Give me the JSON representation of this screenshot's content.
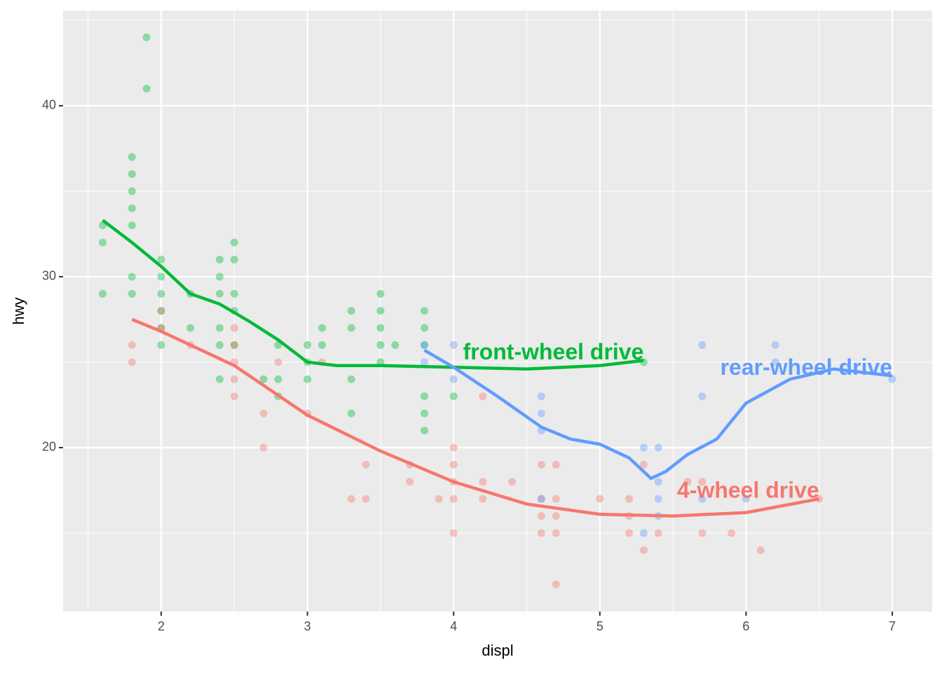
{
  "chart_data": {
    "type": "scatter",
    "x_label": "displ",
    "y_label": "hwy",
    "xlim": [
      1.329,
      7.273
    ],
    "ylim": [
      10.41,
      45.57
    ],
    "xticks": [
      2,
      3,
      4,
      5,
      6,
      7
    ],
    "yticks": [
      20,
      30,
      40
    ],
    "x_minor_grid": [
      1.5,
      2.5,
      3.5,
      4.5,
      5.5,
      6.5
    ],
    "y_minor_grid": [
      15,
      25,
      35,
      45
    ],
    "grid": true,
    "point_opacity": 0.4,
    "series": [
      {
        "name": "front-wheel drive",
        "color": "#00ba38",
        "x": [
          1.6,
          1.6,
          1.6,
          1.8,
          1.8,
          1.8,
          1.8,
          1.8,
          1.8,
          1.8,
          1.9,
          1.9,
          2.0,
          2.0,
          2.0,
          2.0,
          2.0,
          2.0,
          2.2,
          2.2,
          2.4,
          2.4,
          2.4,
          2.4,
          2.4,
          2.4,
          2.5,
          2.5,
          2.5,
          2.5,
          2.5,
          2.7,
          2.8,
          2.8,
          2.8,
          3.0,
          3.0,
          3.0,
          3.1,
          3.1,
          3.3,
          3.3,
          3.3,
          3.3,
          3.5,
          3.5,
          3.5,
          3.5,
          3.5,
          3.6,
          3.8,
          3.8,
          3.8,
          3.8,
          3.8,
          3.8,
          4.0,
          5.3
        ],
        "values": [
          33,
          32,
          29,
          37,
          36,
          35,
          34,
          33,
          30,
          29,
          44,
          41,
          31,
          30,
          29,
          28,
          27,
          26,
          29,
          27,
          31,
          30,
          29,
          27,
          26,
          24,
          32,
          31,
          29,
          28,
          26,
          24,
          26,
          24,
          23,
          26,
          25,
          24,
          27,
          26,
          28,
          27,
          24,
          22,
          29,
          28,
          27,
          26,
          25,
          26,
          28,
          27,
          26,
          23,
          22,
          21,
          23,
          25
        ],
        "smooth_x": [
          1.6,
          1.8,
          2.0,
          2.2,
          2.4,
          2.6,
          2.8,
          3.0,
          3.2,
          3.5,
          4.0,
          4.5,
          5.0,
          5.3
        ],
        "smooth_values": [
          33.3,
          32.0,
          30.6,
          29.0,
          28.4,
          27.4,
          26.3,
          25.0,
          24.8,
          24.8,
          24.7,
          24.6,
          24.8,
          25.1
        ]
      },
      {
        "name": "4-wheel drive",
        "color": "#f8766d",
        "x": [
          1.8,
          1.8,
          2.0,
          2.0,
          2.2,
          2.5,
          2.5,
          2.5,
          2.5,
          2.5,
          2.7,
          2.7,
          2.8,
          3.0,
          3.1,
          3.3,
          3.4,
          3.4,
          3.7,
          3.7,
          3.9,
          4.0,
          4.0,
          4.0,
          4.0,
          4.0,
          4.2,
          4.2,
          4.2,
          4.4,
          4.6,
          4.6,
          4.6,
          4.6,
          4.7,
          4.7,
          4.7,
          4.7,
          4.7,
          5.0,
          5.2,
          5.2,
          5.2,
          5.3,
          5.3,
          5.4,
          5.6,
          5.7,
          5.7,
          5.9,
          6.1,
          6.5
        ],
        "values": [
          26,
          25,
          28,
          27,
          26,
          27,
          26,
          25,
          24,
          23,
          22,
          20,
          25,
          22,
          25,
          17,
          19,
          17,
          19,
          18,
          17,
          20,
          19,
          18,
          17,
          15,
          23,
          18,
          17,
          18,
          19,
          17,
          16,
          15,
          19,
          17,
          16,
          15,
          12,
          17,
          17,
          16,
          15,
          19,
          14,
          15,
          18,
          18,
          15,
          15,
          14,
          17
        ],
        "smooth_x": [
          1.8,
          2.0,
          2.5,
          3.0,
          3.5,
          4.0,
          4.5,
          5.0,
          5.5,
          6.0,
          6.5
        ],
        "smooth_values": [
          27.5,
          26.8,
          24.8,
          21.9,
          19.8,
          18.0,
          16.7,
          16.1,
          16.0,
          16.2,
          17.0
        ]
      },
      {
        "name": "rear-wheel drive",
        "color": "#619cff",
        "x": [
          3.8,
          3.8,
          4.0,
          4.0,
          4.6,
          4.6,
          4.6,
          4.6,
          5.3,
          5.3,
          5.4,
          5.4,
          5.4,
          5.4,
          5.7,
          5.7,
          5.7,
          6.0,
          6.2,
          6.2,
          7.0
        ],
        "values": [
          26,
          25,
          26,
          24,
          23,
          22,
          21,
          17,
          20,
          15,
          20,
          18,
          17,
          16,
          26,
          23,
          17,
          17,
          26,
          25,
          24
        ],
        "smooth_x": [
          3.8,
          4.0,
          4.3,
          4.6,
          4.8,
          5.0,
          5.2,
          5.35,
          5.45,
          5.6,
          5.8,
          6.0,
          6.3,
          6.6,
          7.0
        ],
        "smooth_values": [
          25.7,
          24.7,
          23.0,
          21.2,
          20.5,
          20.2,
          19.4,
          18.2,
          18.6,
          19.6,
          20.5,
          22.6,
          24.0,
          24.6,
          24.2
        ]
      }
    ]
  }
}
